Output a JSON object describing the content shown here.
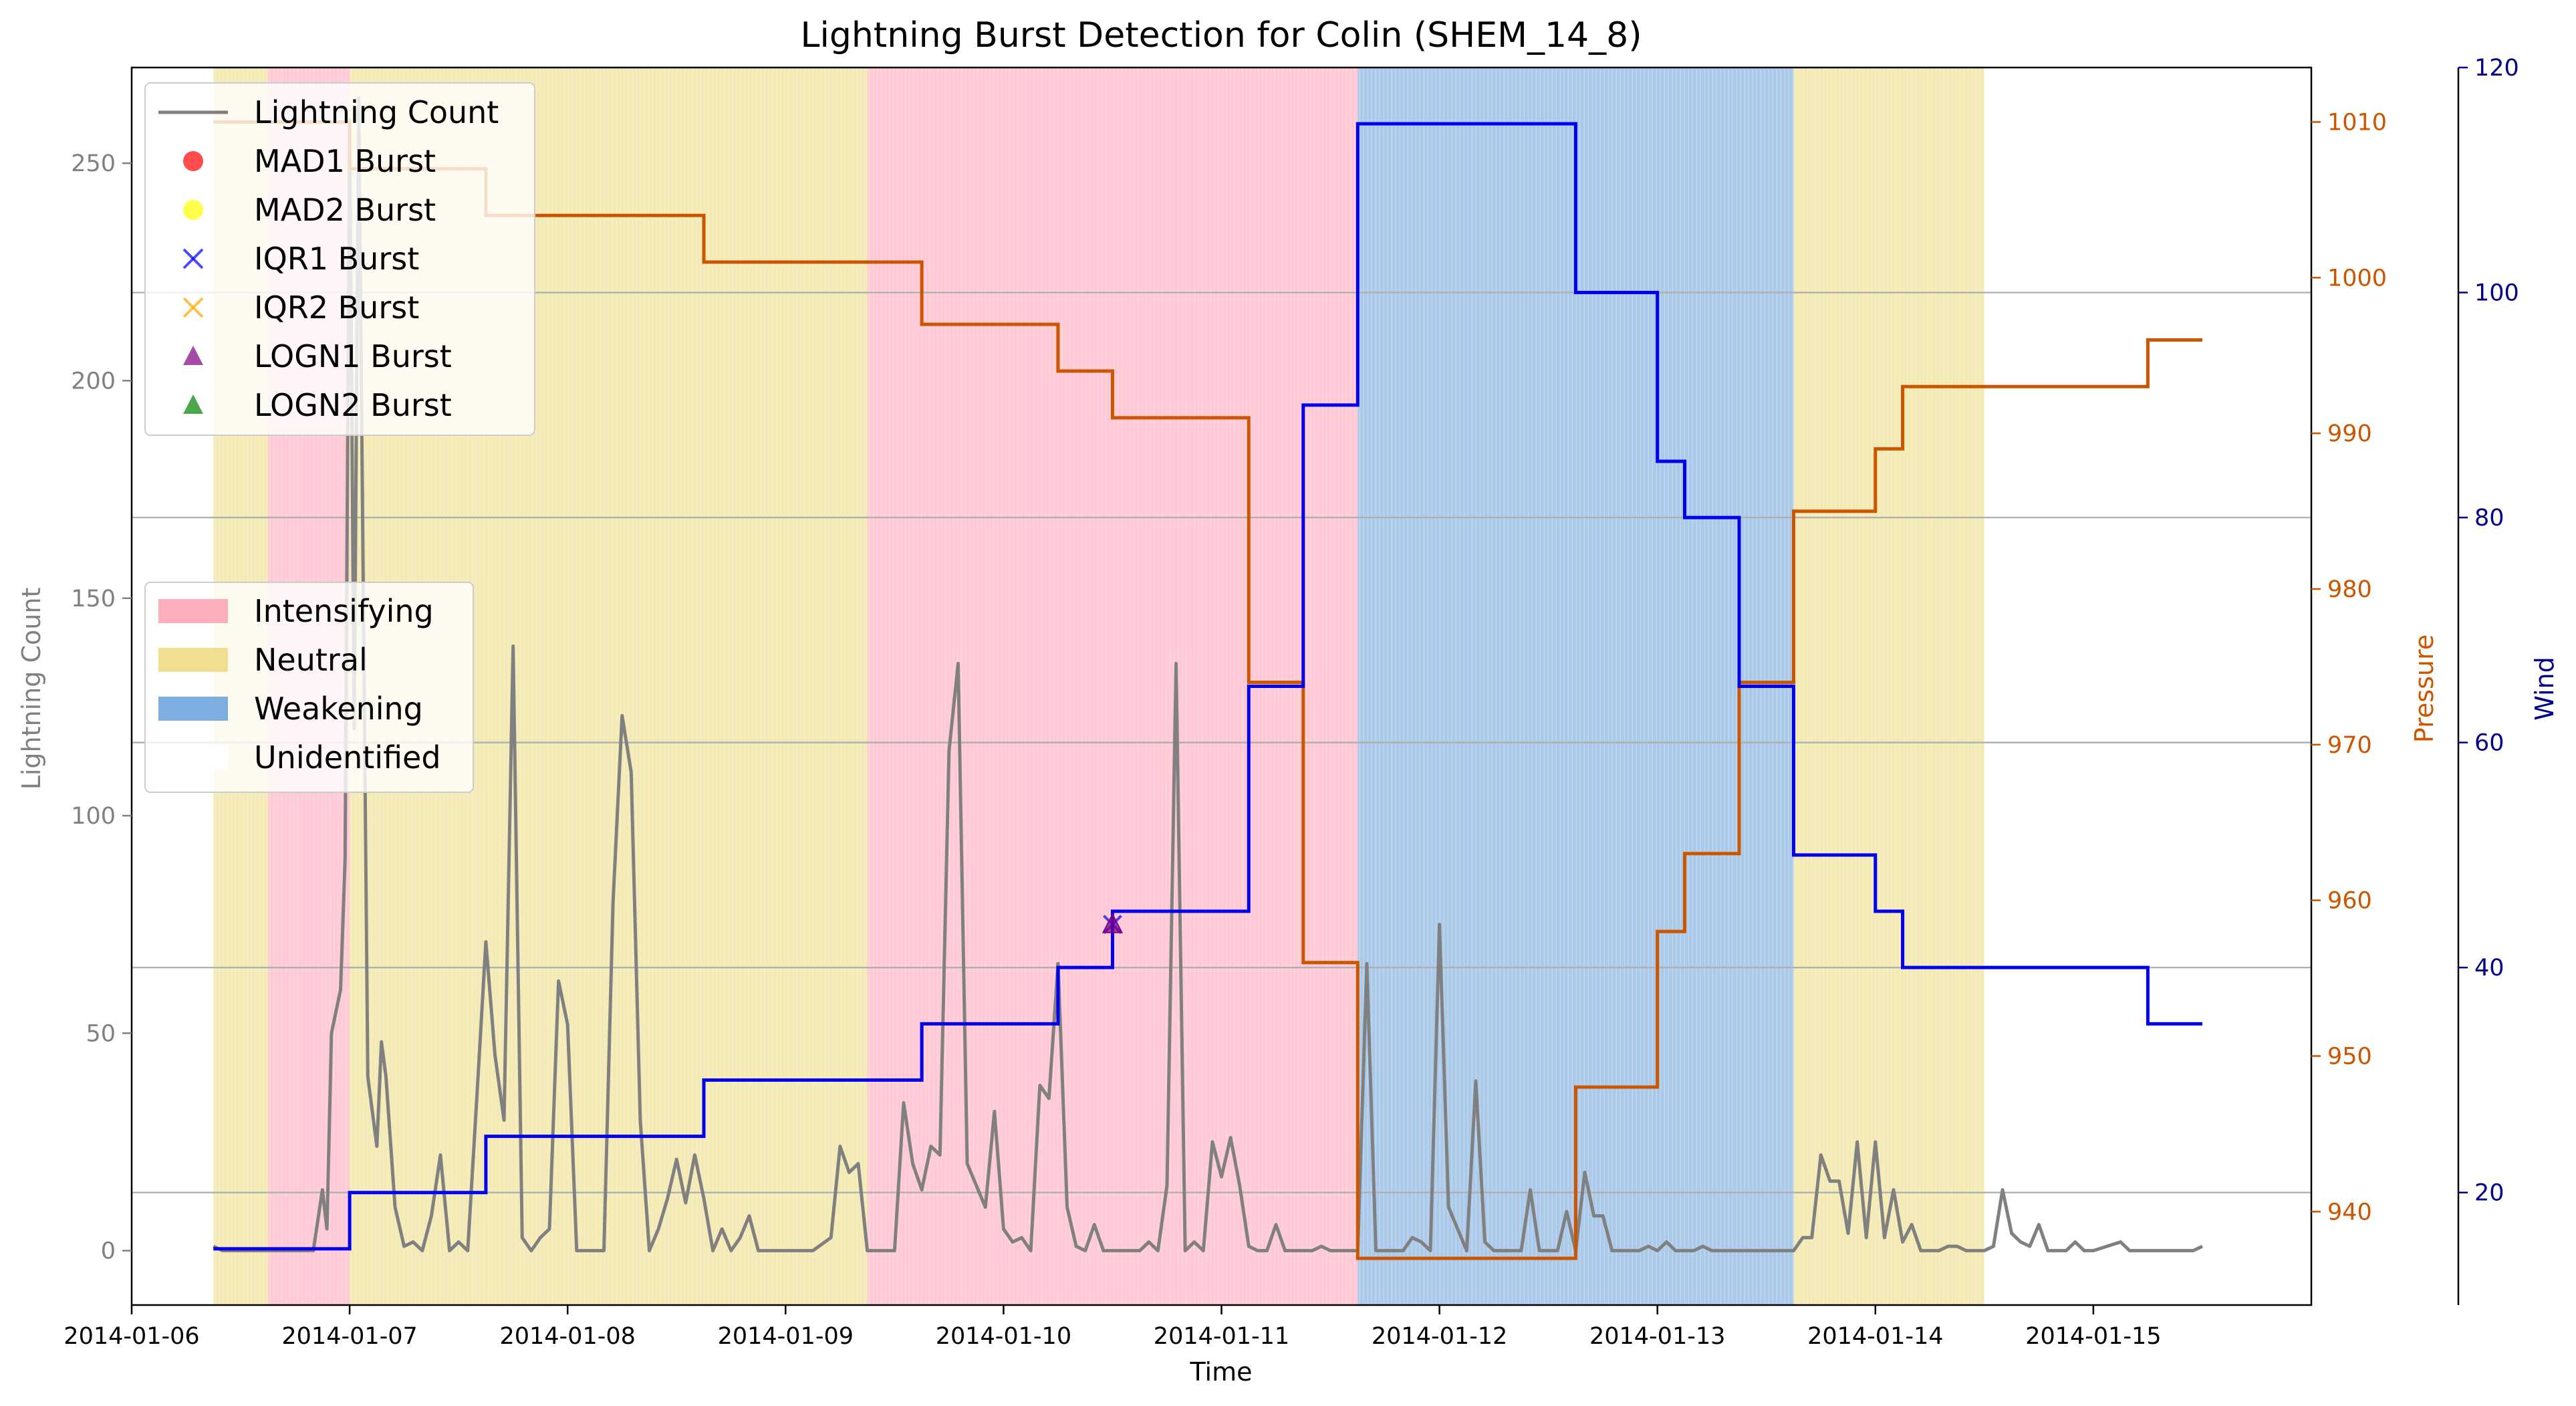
{
  "chart_data": {
    "type": "line",
    "title": "Lightning Burst Detection for Colin (SHEM_14_8)",
    "xlabel": "Time",
    "ylabel_left": "Lightning Count",
    "ylabel_pressure": "Pressure",
    "ylabel_wind": "Wind",
    "x_range": [
      "2014-01-06 00:00",
      "2014-01-16 00:00"
    ],
    "x_ticks": [
      "2014-01-06",
      "2014-01-07",
      "2014-01-08",
      "2014-01-09",
      "2014-01-10",
      "2014-01-11",
      "2014-01-12",
      "2014-01-13",
      "2014-01-14",
      "2014-01-15"
    ],
    "ylim_left": [
      -12.5,
      272
    ],
    "yticks_left": [
      0,
      50,
      100,
      150,
      200,
      250
    ],
    "ylim_pressure": [
      934,
      1013.5
    ],
    "yticks_pressure": [
      940,
      950,
      960,
      970,
      980,
      990,
      1000,
      1010
    ],
    "ylim_wind": [
      10,
      120
    ],
    "yticks_wind": [
      20,
      40,
      60,
      80,
      100,
      120
    ],
    "grid": "horizontal (wind axis)",
    "legend_lines_placement": "top-left",
    "legend_phases_placement": "center-left",
    "legend_lines": [
      {
        "label": "Lightning Count",
        "marker": "line",
        "color": "#808080"
      },
      {
        "label": "MAD1 Burst",
        "marker": "circle",
        "color": "#ff0000"
      },
      {
        "label": "MAD2 Burst",
        "marker": "circle",
        "color": "#ffff00"
      },
      {
        "label": "IQR1 Burst",
        "marker": "x",
        "color": "#0000ff"
      },
      {
        "label": "IQR2 Burst",
        "marker": "x",
        "color": "#ffa500"
      },
      {
        "label": "LOGN1 Burst",
        "marker": "triangle",
        "color": "#800080"
      },
      {
        "label": "LOGN2 Burst",
        "marker": "triangle",
        "color": "#008000"
      }
    ],
    "legend_phases": [
      {
        "label": "Intensifying",
        "color": "#ffaabb"
      },
      {
        "label": "Neutral",
        "color": "#eedd88"
      },
      {
        "label": "Weakening",
        "color": "#77aadd"
      },
      {
        "label": "Unidentified",
        "color": "#ffffff"
      }
    ],
    "phases": [
      {
        "phase": "Neutral",
        "start": "2014-01-06 09:00",
        "end": "2014-01-06 15:00"
      },
      {
        "phase": "Intensifying",
        "start": "2014-01-06 15:00",
        "end": "2014-01-07 00:00"
      },
      {
        "phase": "Neutral",
        "start": "2014-01-07 00:00",
        "end": "2014-01-09 09:00"
      },
      {
        "phase": "Intensifying",
        "start": "2014-01-09 09:00",
        "end": "2014-01-11 15:00"
      },
      {
        "phase": "Weakening",
        "start": "2014-01-11 15:00",
        "end": "2014-01-13 15:00"
      },
      {
        "phase": "Neutral",
        "start": "2014-01-13 15:00",
        "end": "2014-01-14 12:00"
      }
    ],
    "pressure": {
      "name": "Pressure",
      "color": "#cc5500",
      "points": [
        [
          "2014-01-06 09:00",
          1010
        ],
        [
          "2014-01-07 00:00",
          1007
        ],
        [
          "2014-01-07 15:00",
          1004
        ],
        [
          "2014-01-08 15:00",
          1001
        ],
        [
          "2014-01-09 15:00",
          997
        ],
        [
          "2014-01-10 06:00",
          994
        ],
        [
          "2014-01-10 12:00",
          991
        ],
        [
          "2014-01-11 03:00",
          974
        ],
        [
          "2014-01-11 09:00",
          956
        ],
        [
          "2014-01-11 15:00",
          937
        ],
        [
          "2014-01-12 15:00",
          948
        ],
        [
          "2014-01-13 00:00",
          958
        ],
        [
          "2014-01-13 03:00",
          963
        ],
        [
          "2014-01-13 09:00",
          974
        ],
        [
          "2014-01-13 15:00",
          985
        ],
        [
          "2014-01-14 00:00",
          989
        ],
        [
          "2014-01-14 03:00",
          993
        ],
        [
          "2014-01-15 06:00",
          996
        ],
        [
          "2014-01-15 12:00",
          996
        ]
      ]
    },
    "wind": {
      "name": "Wind",
      "color": "#0000ee",
      "points": [
        [
          "2014-01-06 09:00",
          15
        ],
        [
          "2014-01-07 00:00",
          20
        ],
        [
          "2014-01-07 15:00",
          25
        ],
        [
          "2014-01-08 15:00",
          30
        ],
        [
          "2014-01-09 15:00",
          35
        ],
        [
          "2014-01-10 06:00",
          40
        ],
        [
          "2014-01-10 12:00",
          45
        ],
        [
          "2014-01-11 03:00",
          65
        ],
        [
          "2014-01-11 09:00",
          90
        ],
        [
          "2014-01-11 15:00",
          115
        ],
        [
          "2014-01-12 15:00",
          100
        ],
        [
          "2014-01-13 00:00",
          85
        ],
        [
          "2014-01-13 03:00",
          80
        ],
        [
          "2014-01-13 09:00",
          65
        ],
        [
          "2014-01-13 15:00",
          50
        ],
        [
          "2014-01-14 00:00",
          45
        ],
        [
          "2014-01-14 03:00",
          40
        ],
        [
          "2014-01-15 06:00",
          35
        ],
        [
          "2014-01-15 12:00",
          35
        ]
      ]
    },
    "lightning": {
      "name": "Lightning Count",
      "color": "#808080",
      "points": [
        [
          "2014-01-06 09:00",
          1
        ],
        [
          "2014-01-06 10:00",
          0
        ],
        [
          "2014-01-06 15:00",
          0
        ],
        [
          "2014-01-06 20:00",
          0
        ],
        [
          "2014-01-06 21:00",
          14
        ],
        [
          "2014-01-06 21:30",
          5
        ],
        [
          "2014-01-06 22:00",
          50
        ],
        [
          "2014-01-06 23:00",
          60
        ],
        [
          "2014-01-06 23:30",
          90
        ],
        [
          "2014-01-07 00:00",
          260
        ],
        [
          "2014-01-07 00:30",
          120
        ],
        [
          "2014-01-07 01:00",
          265
        ],
        [
          "2014-01-07 02:00",
          40
        ],
        [
          "2014-01-07 03:00",
          24
        ],
        [
          "2014-01-07 03:30",
          48
        ],
        [
          "2014-01-07 04:00",
          40
        ],
        [
          "2014-01-07 05:00",
          10
        ],
        [
          "2014-01-07 06:00",
          1
        ],
        [
          "2014-01-07 07:00",
          2
        ],
        [
          "2014-01-07 08:00",
          0
        ],
        [
          "2014-01-07 09:00",
          8
        ],
        [
          "2014-01-07 10:00",
          22
        ],
        [
          "2014-01-07 11:00",
          0
        ],
        [
          "2014-01-07 12:00",
          2
        ],
        [
          "2014-01-07 13:00",
          0
        ],
        [
          "2014-01-07 14:00",
          35
        ],
        [
          "2014-01-07 15:00",
          71
        ],
        [
          "2014-01-07 16:00",
          45
        ],
        [
          "2014-01-07 17:00",
          30
        ],
        [
          "2014-01-07 18:00",
          139
        ],
        [
          "2014-01-07 19:00",
          3
        ],
        [
          "2014-01-07 20:00",
          0
        ],
        [
          "2014-01-07 21:00",
          3
        ],
        [
          "2014-01-07 22:00",
          5
        ],
        [
          "2014-01-07 23:00",
          62
        ],
        [
          "2014-01-08 00:00",
          52
        ],
        [
          "2014-01-08 01:00",
          0
        ],
        [
          "2014-01-08 04:00",
          0
        ],
        [
          "2014-01-08 05:00",
          80
        ],
        [
          "2014-01-08 06:00",
          123
        ],
        [
          "2014-01-08 07:00",
          110
        ],
        [
          "2014-01-08 08:00",
          30
        ],
        [
          "2014-01-08 09:00",
          0
        ],
        [
          "2014-01-08 10:00",
          5
        ],
        [
          "2014-01-08 11:00",
          12
        ],
        [
          "2014-01-08 12:00",
          21
        ],
        [
          "2014-01-08 13:00",
          11
        ],
        [
          "2014-01-08 14:00",
          22
        ],
        [
          "2014-01-08 15:00",
          12
        ],
        [
          "2014-01-08 16:00",
          0
        ],
        [
          "2014-01-08 17:00",
          5
        ],
        [
          "2014-01-08 18:00",
          0
        ],
        [
          "2014-01-08 19:00",
          3
        ],
        [
          "2014-01-08 20:00",
          8
        ],
        [
          "2014-01-08 21:00",
          0
        ],
        [
          "2014-01-09 03:00",
          0
        ],
        [
          "2014-01-09 05:00",
          3
        ],
        [
          "2014-01-09 06:00",
          24
        ],
        [
          "2014-01-09 07:00",
          18
        ],
        [
          "2014-01-09 08:00",
          20
        ],
        [
          "2014-01-09 09:00",
          0
        ],
        [
          "2014-01-09 11:00",
          0
        ],
        [
          "2014-01-09 12:00",
          0
        ],
        [
          "2014-01-09 13:00",
          34
        ],
        [
          "2014-01-09 14:00",
          20
        ],
        [
          "2014-01-09 15:00",
          14
        ],
        [
          "2014-01-09 16:00",
          24
        ],
        [
          "2014-01-09 17:00",
          22
        ],
        [
          "2014-01-09 18:00",
          115
        ],
        [
          "2014-01-09 19:00",
          135
        ],
        [
          "2014-01-09 20:00",
          20
        ],
        [
          "2014-01-09 21:00",
          15
        ],
        [
          "2014-01-09 22:00",
          10
        ],
        [
          "2014-01-09 23:00",
          32
        ],
        [
          "2014-01-10 00:00",
          5
        ],
        [
          "2014-01-10 01:00",
          2
        ],
        [
          "2014-01-10 02:00",
          3
        ],
        [
          "2014-01-10 03:00",
          0
        ],
        [
          "2014-01-10 04:00",
          38
        ],
        [
          "2014-01-10 05:00",
          35
        ],
        [
          "2014-01-10 06:00",
          66
        ],
        [
          "2014-01-10 07:00",
          10
        ],
        [
          "2014-01-10 08:00",
          1
        ],
        [
          "2014-01-10 09:00",
          0
        ],
        [
          "2014-01-10 10:00",
          6
        ],
        [
          "2014-01-10 11:00",
          0
        ],
        [
          "2014-01-10 15:00",
          0
        ],
        [
          "2014-01-10 16:00",
          2
        ],
        [
          "2014-01-10 17:00",
          0
        ],
        [
          "2014-01-10 18:00",
          15
        ],
        [
          "2014-01-10 19:00",
          135
        ],
        [
          "2014-01-10 20:00",
          0
        ],
        [
          "2014-01-10 21:00",
          2
        ],
        [
          "2014-01-10 22:00",
          0
        ],
        [
          "2014-01-10 23:00",
          25
        ],
        [
          "2014-01-11 00:00",
          17
        ],
        [
          "2014-01-11 01:00",
          26
        ],
        [
          "2014-01-11 02:00",
          15
        ],
        [
          "2014-01-11 03:00",
          1
        ],
        [
          "2014-01-11 04:00",
          0
        ],
        [
          "2014-01-11 05:00",
          0
        ],
        [
          "2014-01-11 06:00",
          6
        ],
        [
          "2014-01-11 07:00",
          0
        ],
        [
          "2014-01-11 09:00",
          0
        ],
        [
          "2014-01-11 10:00",
          0
        ],
        [
          "2014-01-11 11:00",
          1
        ],
        [
          "2014-01-11 12:00",
          0
        ],
        [
          "2014-01-11 14:00",
          0
        ],
        [
          "2014-01-11 15:00",
          0
        ],
        [
          "2014-01-11 16:00",
          66
        ],
        [
          "2014-01-11 17:00",
          0
        ],
        [
          "2014-01-11 18:00",
          0
        ],
        [
          "2014-01-11 20:00",
          0
        ],
        [
          "2014-01-11 21:00",
          3
        ],
        [
          "2014-01-11 22:00",
          2
        ],
        [
          "2014-01-11 23:00",
          0
        ],
        [
          "2014-01-12 00:00",
          75
        ],
        [
          "2014-01-12 01:00",
          10
        ],
        [
          "2014-01-12 02:00",
          5
        ],
        [
          "2014-01-12 03:00",
          0
        ],
        [
          "2014-01-12 04:00",
          39
        ],
        [
          "2014-01-12 05:00",
          2
        ],
        [
          "2014-01-12 06:00",
          0
        ],
        [
          "2014-01-12 09:00",
          0
        ],
        [
          "2014-01-12 10:00",
          14
        ],
        [
          "2014-01-12 11:00",
          0
        ],
        [
          "2014-01-12 13:00",
          0
        ],
        [
          "2014-01-12 14:00",
          9
        ],
        [
          "2014-01-12 15:00",
          0
        ],
        [
          "2014-01-12 16:00",
          18
        ],
        [
          "2014-01-12 17:00",
          8
        ],
        [
          "2014-01-12 18:00",
          8
        ],
        [
          "2014-01-12 19:00",
          0
        ],
        [
          "2014-01-12 22:00",
          0
        ],
        [
          "2014-01-12 23:00",
          1
        ],
        [
          "2014-01-13 00:00",
          0
        ],
        [
          "2014-01-13 01:00",
          2
        ],
        [
          "2014-01-13 02:00",
          0
        ],
        [
          "2014-01-13 04:00",
          0
        ],
        [
          "2014-01-13 05:00",
          1
        ],
        [
          "2014-01-13 06:00",
          0
        ],
        [
          "2014-01-13 15:00",
          0
        ],
        [
          "2014-01-13 16:00",
          3
        ],
        [
          "2014-01-13 17:00",
          3
        ],
        [
          "2014-01-13 18:00",
          22
        ],
        [
          "2014-01-13 19:00",
          16
        ],
        [
          "2014-01-13 20:00",
          16
        ],
        [
          "2014-01-13 21:00",
          4
        ],
        [
          "2014-01-13 22:00",
          25
        ],
        [
          "2014-01-13 23:00",
          3
        ],
        [
          "2014-01-14 00:00",
          25
        ],
        [
          "2014-01-14 01:00",
          3
        ],
        [
          "2014-01-14 02:00",
          14
        ],
        [
          "2014-01-14 03:00",
          2
        ],
        [
          "2014-01-14 04:00",
          6
        ],
        [
          "2014-01-14 05:00",
          0
        ],
        [
          "2014-01-14 07:00",
          0
        ],
        [
          "2014-01-14 08:00",
          1
        ],
        [
          "2014-01-14 09:00",
          1
        ],
        [
          "2014-01-14 10:00",
          0
        ],
        [
          "2014-01-14 12:00",
          0
        ],
        [
          "2014-01-14 13:00",
          1
        ],
        [
          "2014-01-14 14:00",
          14
        ],
        [
          "2014-01-14 15:00",
          4
        ],
        [
          "2014-01-14 16:00",
          2
        ],
        [
          "2014-01-14 17:00",
          1
        ],
        [
          "2014-01-14 18:00",
          6
        ],
        [
          "2014-01-14 19:00",
          0
        ],
        [
          "2014-01-14 21:00",
          0
        ],
        [
          "2014-01-14 22:00",
          2
        ],
        [
          "2014-01-14 23:00",
          0
        ],
        [
          "2014-01-15 00:00",
          0
        ],
        [
          "2014-01-15 03:00",
          2
        ],
        [
          "2014-01-15 04:00",
          0
        ],
        [
          "2014-01-15 11:00",
          0
        ],
        [
          "2014-01-15 12:00",
          1
        ]
      ]
    },
    "bursts": [
      {
        "detector": "IQR1 Burst",
        "time": "2014-01-10 12:00",
        "value": 75
      },
      {
        "detector": "LOGN1 Burst",
        "time": "2014-01-10 12:00",
        "value": 75
      }
    ],
    "colors": {
      "lightning": "#808080",
      "pressure": "#cc5500",
      "wind": "#0000ee",
      "wind_axis": "#00008b"
    }
  }
}
